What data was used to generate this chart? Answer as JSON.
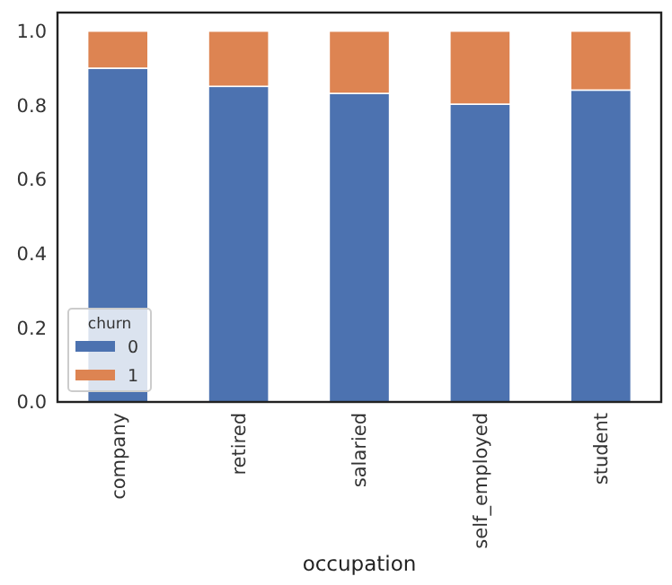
{
  "chart_data": {
    "type": "bar",
    "stacked": true,
    "xlabel": "occupation",
    "legend_title": "churn",
    "legend": "bottom left",
    "grid": false,
    "categories": [
      "company",
      "retired",
      "salaried",
      "self_employed",
      "student"
    ],
    "series": [
      {
        "name": "0",
        "color": "#4c72b0",
        "values": [
          0.9,
          0.851,
          0.832,
          0.803,
          0.841
        ]
      },
      {
        "name": "1",
        "color": "#dd8452",
        "values": [
          0.1,
          0.149,
          0.168,
          0.197,
          0.159
        ]
      }
    ],
    "ylim": [
      0,
      1.05
    ],
    "yticks": [
      {
        "value": 0,
        "label": "0.0"
      },
      {
        "value": 0.2,
        "label": "0.2"
      },
      {
        "value": 0.4,
        "label": "0.4"
      },
      {
        "value": 0.6,
        "label": "0.6"
      },
      {
        "value": 0.8,
        "label": "0.8"
      },
      {
        "value": 1,
        "label": "1.0"
      }
    ]
  }
}
